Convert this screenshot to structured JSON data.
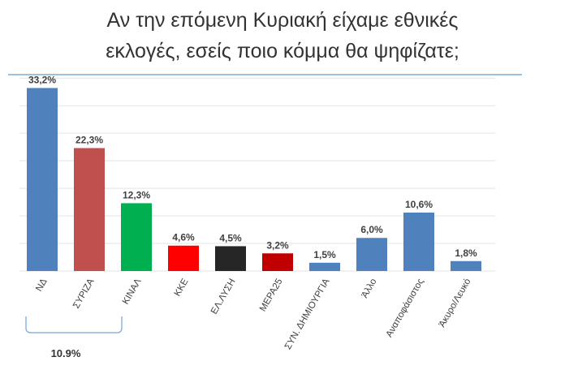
{
  "title_line1": "Αν την επόμενη Κυριακή είχαμε εθνικές",
  "title_line2": "εκλογές, εσείς ποιο κόμμα θα ψηφίζατε;",
  "chart_data": {
    "type": "bar",
    "title": "Αν την επόμενη Κυριακή είχαμε εθνικές εκλογές, εσείς ποιο κόμμα θα ψηφίζατε;",
    "categories": [
      "ΝΔ",
      "ΣΥΡΙΖΑ",
      "ΚΙΝΑΛ",
      "ΚΚΕ",
      "ΕΛ.ΛΥΣΗ",
      "ΜΕΡΑ25",
      "ΣΥΝ. ΔΗΜΙΟΥΡΓΙΑ",
      "Άλλο",
      "Αναποφάσιστος",
      "Άκυρο/Λευκό"
    ],
    "values": [
      33.2,
      22.3,
      12.3,
      4.6,
      4.5,
      3.2,
      1.5,
      6.0,
      10.6,
      1.8
    ],
    "data_labels": [
      "33,2%",
      "22,3%",
      "12,3%",
      "4,6%",
      "4,5%",
      "3,2%",
      "1,5%",
      "6,0%",
      "10,6%",
      "1,8%"
    ],
    "colors": [
      "#4f81bd",
      "#c0504d",
      "#00b050",
      "#ff0000",
      "#262626",
      "#c00000",
      "#4f81bd",
      "#4f81bd",
      "#4f81bd",
      "#4f81bd"
    ],
    "ylim": [
      0,
      35
    ],
    "grid": true,
    "annotation": {
      "spans": [
        "ΝΔ",
        "ΣΥΡΙΖΑ"
      ],
      "text": "10.9%"
    }
  }
}
